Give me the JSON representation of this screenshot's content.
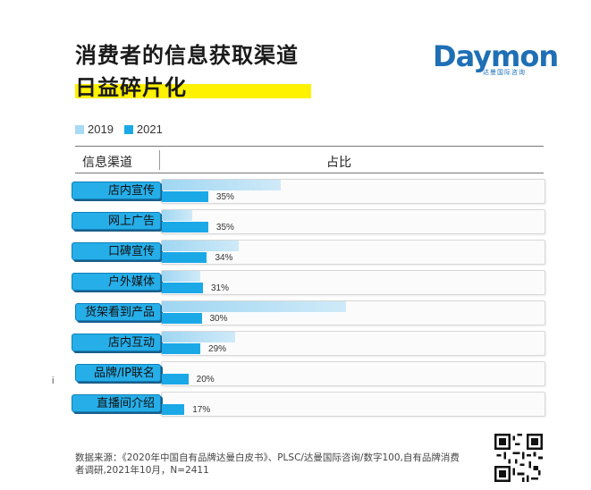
{
  "title": {
    "line1": "消费者的信息获取渠道",
    "line2": "日益碎片化"
  },
  "brand": {
    "name": "Daymon",
    "sub": "达曼国际咨询"
  },
  "legend": [
    {
      "label": "2019",
      "color": "#a8daf3"
    },
    {
      "label": "2021",
      "color": "#1aa9e6"
    }
  ],
  "header": {
    "col1": "信息渠道",
    "col2": "占比"
  },
  "chart_data": {
    "type": "bar",
    "orientation": "horizontal",
    "categories": [
      "店内宣传",
      "网上广告",
      "口碑宣传",
      "户外媒体",
      "货架看到产品",
      "店内互动",
      "品牌/IP联名",
      "直播间介绍"
    ],
    "series": [
      {
        "name": "2019",
        "values": [
          31,
          8,
          20,
          10,
          48,
          19,
          null,
          null
        ]
      },
      {
        "name": "2021",
        "values": [
          35,
          35,
          34,
          31,
          30,
          29,
          20,
          17
        ]
      }
    ],
    "value_labels": [
      "35%",
      "35%",
      "34%",
      "31%",
      "30%",
      "29%",
      "20%",
      "17%"
    ],
    "unit": "%",
    "xlim": [
      0,
      100
    ]
  },
  "source_text": "数据来源：《2020年中国自有品牌达曼白皮书》、PLSC/达曼国际咨询/数字100,自有品牌消费者调研,2021年10月，N=2411",
  "stray_mark": "i"
}
